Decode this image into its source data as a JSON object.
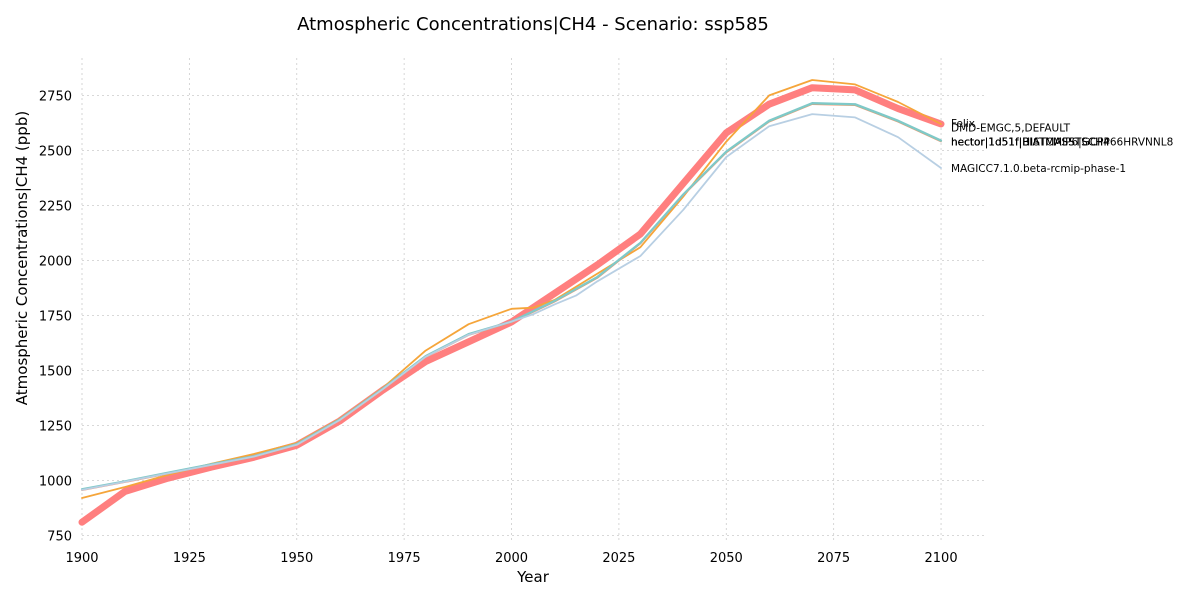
{
  "chart_data": {
    "type": "line",
    "title": "Atmospheric Concentrations|CH4 - Scenario: ssp585",
    "xlabel": "Year",
    "ylabel": "Atmospheric Concentrations|CH4 (ppb)",
    "xlim": [
      1900,
      2110
    ],
    "ylim": [
      720,
      2920
    ],
    "grid": true,
    "legend_placement": "right-end labels",
    "x_ticks": [
      1900,
      1925,
      1950,
      1975,
      2000,
      2025,
      2050,
      2075,
      2100
    ],
    "y_ticks": [
      750,
      1000,
      1250,
      1500,
      1750,
      2000,
      2250,
      2500,
      2750
    ],
    "series": [
      {
        "name": "Felix",
        "color": "#ff7f7f",
        "width": 7,
        "x": [
          1900,
          1910,
          1920,
          1930,
          1940,
          1950,
          1960,
          1970,
          1980,
          1990,
          2000,
          2010,
          2020,
          2030,
          2040,
          2050,
          2060,
          2070,
          2080,
          2090,
          2100
        ],
        "y": [
          810,
          950,
          1010,
          1060,
          1105,
          1160,
          1270,
          1410,
          1540,
          1630,
          1720,
          1850,
          1980,
          2120,
          2350,
          2580,
          2710,
          2785,
          2775,
          2690,
          2620
        ]
      },
      {
        "name": "DMD-EMGC,5,DEFAULT",
        "color": "#f5a53a",
        "width": 1.8,
        "x": [
          1900,
          1910,
          1920,
          1930,
          1940,
          1950,
          1960,
          1970,
          1980,
          1990,
          2000,
          2005,
          2010,
          2020,
          2030,
          2040,
          2050,
          2060,
          2070,
          2080,
          2090,
          2100
        ],
        "y": [
          920,
          970,
          1025,
          1075,
          1120,
          1170,
          1280,
          1420,
          1590,
          1710,
          1780,
          1785,
          1820,
          1940,
          2060,
          2290,
          2540,
          2750,
          2820,
          2800,
          2720,
          2620
        ]
      },
      {
        "name": "hector|1d51f|BIATMASSTSCH4",
        "color": "#ff8c69",
        "width": 1.5,
        "x": [
          1900,
          1910,
          1920,
          1930,
          1940,
          1950,
          1960,
          1970,
          1980,
          1990,
          2000,
          2010,
          2020,
          2030,
          2040,
          2050,
          2060,
          2070,
          2080,
          2090,
          2100
        ],
        "y": [
          955,
          992,
          1030,
          1068,
          1106,
          1160,
          1272,
          1412,
          1560,
          1660,
          1718,
          1812,
          1920,
          2076,
          2296,
          2490,
          2630,
          2710,
          2705,
          2630,
          2540
        ]
      },
      {
        "name": "hector|1d51f|BIATMASSTSCH4",
        "color": "#8cc8a5",
        "width": 1.5,
        "x": [
          1900,
          1910,
          1920,
          1930,
          1940,
          1950,
          1960,
          1970,
          1980,
          1990,
          2000,
          2010,
          2020,
          2030,
          2040,
          2050,
          2060,
          2070,
          2080,
          2090,
          2100
        ],
        "y": [
          957,
          994,
          1032,
          1070,
          1108,
          1162,
          1274,
          1414,
          1562,
          1662,
          1720,
          1814,
          1922,
          2078,
          2298,
          2492,
          2632,
          2712,
          2707,
          2632,
          2542
        ]
      },
      {
        "name": "hector|1d51f|HISTCMIP6|GCPP66HRVNNL8",
        "color": "#7fc9c8",
        "width": 2.2,
        "x": [
          1900,
          1910,
          1920,
          1930,
          1940,
          1950,
          1960,
          1970,
          1980,
          1990,
          2000,
          2010,
          2020,
          2030,
          2040,
          2050,
          2060,
          2070,
          2080,
          2090,
          2100
        ],
        "y": [
          960,
          996,
          1035,
          1073,
          1110,
          1165,
          1277,
          1417,
          1565,
          1665,
          1722,
          1816,
          1925,
          2080,
          2300,
          2495,
          2635,
          2715,
          2710,
          2635,
          2545
        ]
      },
      {
        "name": "MAGICC7.1.0.beta-rcmip-phase-1",
        "color": "#b8cfe3",
        "width": 1.8,
        "x": [
          1900,
          1910,
          1920,
          1930,
          1940,
          1950,
          1960,
          1970,
          1980,
          1990,
          2000,
          2005,
          2010,
          2015,
          2020,
          2030,
          2040,
          2050,
          2060,
          2070,
          2080,
          2090,
          2100
        ],
        "y": [
          957,
          994,
          1032,
          1070,
          1108,
          1162,
          1274,
          1414,
          1562,
          1662,
          1722,
          1755,
          1800,
          1840,
          1905,
          2020,
          2230,
          2470,
          2610,
          2665,
          2650,
          2560,
          2420
        ]
      }
    ],
    "legend_labels": [
      {
        "text": "Felix",
        "y": 2625
      },
      {
        "text": "DMD-EMGC,5,DEFAULT",
        "y": 2605
      },
      {
        "text": "hector|1d51f|BIATMASSTSCH4",
        "y": 2540
      },
      {
        "text": "hector|1d51f|HISTCMIP6|GCPP66HRVNNL8",
        "y": 2540
      },
      {
        "text": "hector|1d51f|BIATMASSTSCH4",
        "y": 2540
      },
      {
        "text": "MAGICC7.1.0.beta-rcmip-phase-1",
        "y": 2420
      }
    ]
  }
}
